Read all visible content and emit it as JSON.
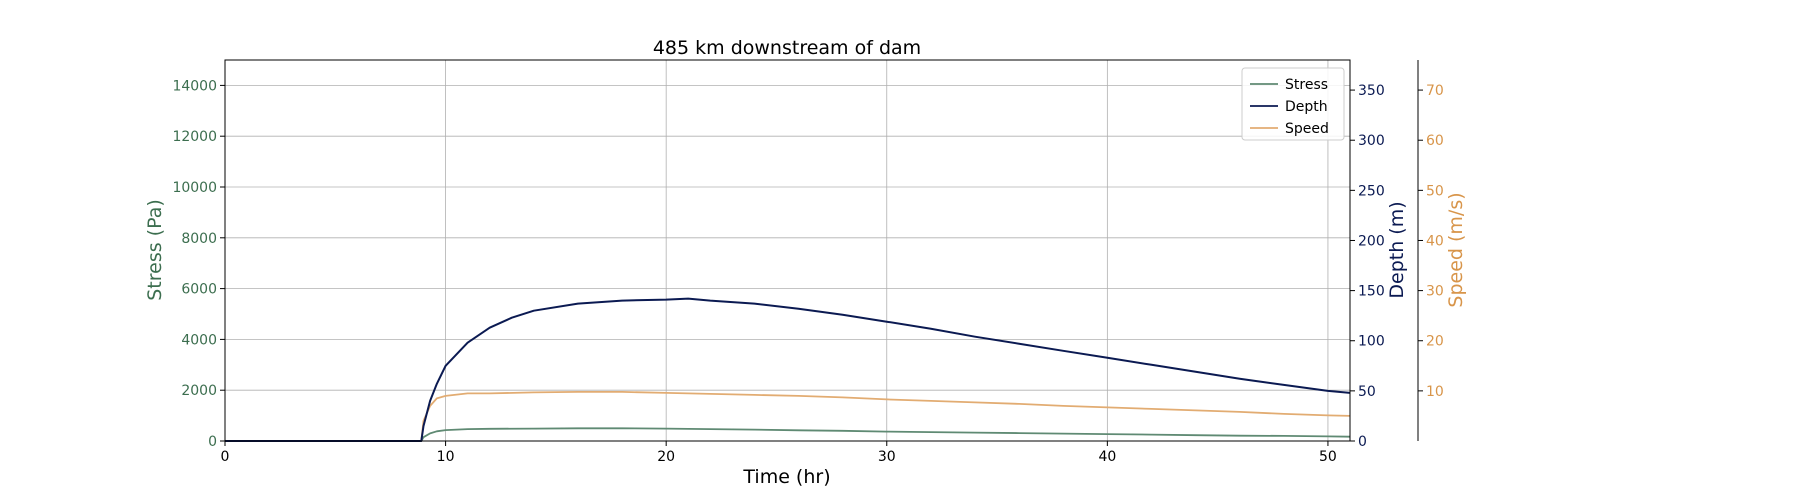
{
  "chart_data": {
    "type": "line",
    "title": "485 km downstream of dam",
    "xlabel": "Time (hr)",
    "xlim": [
      0,
      51
    ],
    "xticks": [
      0,
      10,
      20,
      30,
      40,
      50
    ],
    "grid": true,
    "legend_placement": "top-right",
    "axes": {
      "left": {
        "label": "Stress (Pa)",
        "lim": [
          0,
          15000
        ],
        "ticks": [
          0,
          2000,
          4000,
          6000,
          8000,
          10000,
          12000,
          14000
        ],
        "color": "#3c6e4f"
      },
      "right1": {
        "label": "Depth (m)",
        "lim": [
          0,
          380
        ],
        "ticks": [
          0,
          50,
          100,
          150,
          200,
          250,
          300,
          350
        ],
        "color": "#0b1a52"
      },
      "right2": {
        "label": "Speed (m/s)",
        "lim": [
          0,
          76
        ],
        "ticks": [
          10,
          20,
          30,
          40,
          50,
          60,
          70
        ],
        "color": "#d8954a"
      }
    },
    "series": [
      {
        "name": "Stress",
        "axis": "left",
        "color": "#5f8a73",
        "x": [
          0,
          8.9,
          9.0,
          9.3,
          9.6,
          10,
          11,
          12,
          14,
          16,
          18,
          20,
          22,
          24,
          26,
          28,
          30,
          32,
          34,
          36,
          38,
          40,
          42,
          44,
          46,
          48,
          50,
          51
        ],
        "y": [
          0,
          0,
          150,
          300,
          380,
          430,
          470,
          480,
          490,
          500,
          500,
          490,
          470,
          450,
          420,
          400,
          370,
          350,
          330,
          310,
          290,
          270,
          250,
          230,
          210,
          200,
          180,
          170
        ]
      },
      {
        "name": "Depth",
        "axis": "right1",
        "color": "#0b1a52",
        "x": [
          0,
          8.9,
          9.0,
          9.3,
          9.6,
          10,
          11,
          12,
          13,
          14,
          16,
          18,
          20,
          21,
          22,
          24,
          26,
          28,
          30,
          32,
          34,
          36,
          38,
          40,
          42,
          44,
          46,
          48,
          50,
          51
        ],
        "y": [
          0,
          0,
          15,
          40,
          57,
          75,
          98,
          113,
          123,
          130,
          137,
          140,
          141,
          142,
          140,
          137,
          132,
          126,
          119,
          112,
          104,
          97,
          90,
          83,
          76,
          69,
          62,
          56,
          50,
          48
        ]
      },
      {
        "name": "Speed",
        "axis": "right2",
        "color": "#e2ac72",
        "x": [
          0,
          8.9,
          9.0,
          9.3,
          9.6,
          10,
          11,
          12,
          14,
          16,
          18,
          20,
          22,
          24,
          26,
          28,
          30,
          32,
          34,
          36,
          38,
          40,
          42,
          44,
          46,
          48,
          50,
          51
        ],
        "y": [
          0,
          0,
          4,
          7,
          8.5,
          9,
          9.5,
          9.5,
          9.7,
          9.8,
          9.8,
          9.6,
          9.4,
          9.2,
          9.0,
          8.7,
          8.3,
          8.0,
          7.7,
          7.4,
          7.0,
          6.7,
          6.4,
          6.1,
          5.8,
          5.4,
          5.1,
          5.0
        ]
      }
    ]
  }
}
